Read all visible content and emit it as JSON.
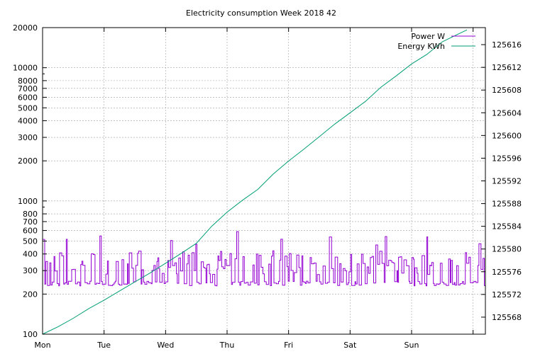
{
  "chart_data": {
    "type": "line",
    "title": "Electricity consumption Week 2018 42",
    "xlabel": "",
    "ylabel": "",
    "y2label": "",
    "grid": true,
    "legend_position": "top-right",
    "x_days": [
      "Mon",
      "Tue",
      "Wed",
      "Thu",
      "Fri",
      "Sat",
      "Sun"
    ],
    "x_range_days": [
      0,
      7.2
    ],
    "y_scale": "log",
    "y_range": [
      100,
      20000
    ],
    "y_ticks": [
      100,
      200,
      300,
      400,
      500,
      600,
      700,
      800,
      1000,
      2000,
      3000,
      4000,
      5000,
      6000,
      7000,
      8000,
      10000,
      20000
    ],
    "y2_range": [
      125565,
      125619
    ],
    "y2_ticks": [
      125568,
      125572,
      125576,
      125580,
      125584,
      125588,
      125592,
      125596,
      125600,
      125604,
      125608,
      125612,
      125616
    ],
    "series": [
      {
        "name": "Power W",
        "axis": "left",
        "color": "#9400d3",
        "style": "steps",
        "baseline_low": 230,
        "baseline_high": 420,
        "peak_max": 600,
        "seed": 42
      },
      {
        "name": "Energy KWh",
        "axis": "right",
        "color": "#009e73",
        "style": "line",
        "points": [
          [
            0.0,
            125565.0
          ],
          [
            0.25,
            125566.3
          ],
          [
            0.5,
            125567.8
          ],
          [
            0.75,
            125569.5
          ],
          [
            1.0,
            125571.0
          ],
          [
            1.25,
            125572.6
          ],
          [
            1.5,
            125574.2
          ],
          [
            1.75,
            125575.8
          ],
          [
            2.0,
            125577.5
          ],
          [
            2.25,
            125579.2
          ],
          [
            2.5,
            125581.0
          ],
          [
            2.75,
            125584.0
          ],
          [
            3.0,
            125586.5
          ],
          [
            3.25,
            125588.6
          ],
          [
            3.5,
            125590.5
          ],
          [
            3.75,
            125593.2
          ],
          [
            4.0,
            125595.5
          ],
          [
            4.25,
            125597.6
          ],
          [
            4.5,
            125599.8
          ],
          [
            4.75,
            125602.0
          ],
          [
            5.0,
            125604.0
          ],
          [
            5.25,
            125606.0
          ],
          [
            5.5,
            125608.5
          ],
          [
            5.75,
            125610.5
          ],
          [
            6.0,
            125612.6
          ],
          [
            6.25,
            125614.3
          ],
          [
            6.5,
            125616.5
          ],
          [
            6.9,
            125618.6
          ]
        ]
      }
    ]
  }
}
